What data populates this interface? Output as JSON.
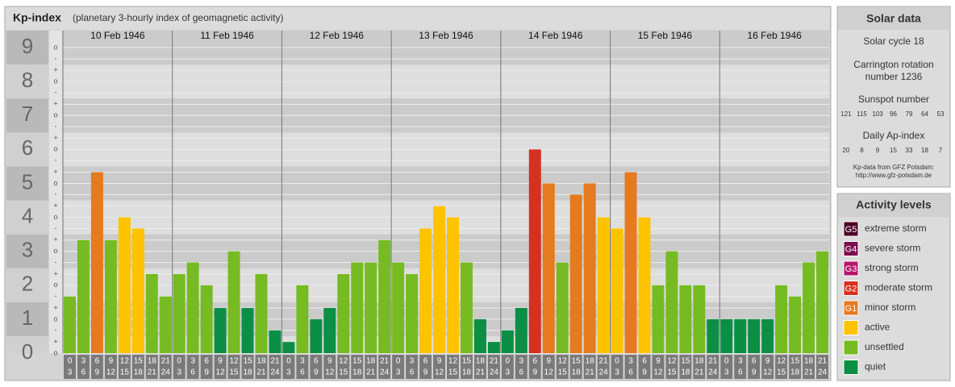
{
  "chart_data": {
    "type": "bar",
    "title": "Kp-index",
    "subtitle": "(planetary 3-hourly index of geomagnetic activity)",
    "days": [
      "10 Feb 1946",
      "11 Feb 1946",
      "12 Feb 1946",
      "13 Feb 1946",
      "14 Feb 1946",
      "15 Feb 1946",
      "16 Feb 1946"
    ],
    "categories": [
      [
        "0",
        "3"
      ],
      [
        "3",
        "6"
      ],
      [
        "6",
        "9"
      ],
      [
        "9",
        "12"
      ],
      [
        "12",
        "15"
      ],
      [
        "15",
        "18"
      ],
      [
        "18",
        "21"
      ],
      [
        "21",
        "24"
      ],
      [
        "0",
        "3"
      ],
      [
        "3",
        "6"
      ],
      [
        "6",
        "9"
      ],
      [
        "9",
        "12"
      ],
      [
        "12",
        "15"
      ],
      [
        "15",
        "18"
      ],
      [
        "18",
        "21"
      ],
      [
        "21",
        "24"
      ],
      [
        "0",
        "3"
      ],
      [
        "3",
        "6"
      ],
      [
        "6",
        "9"
      ],
      [
        "9",
        "12"
      ],
      [
        "12",
        "15"
      ],
      [
        "15",
        "18"
      ],
      [
        "18",
        "21"
      ],
      [
        "21",
        "24"
      ],
      [
        "0",
        "3"
      ],
      [
        "3",
        "6"
      ],
      [
        "6",
        "9"
      ],
      [
        "9",
        "12"
      ],
      [
        "12",
        "15"
      ],
      [
        "15",
        "18"
      ],
      [
        "18",
        "21"
      ],
      [
        "21",
        "24"
      ],
      [
        "0",
        "3"
      ],
      [
        "3",
        "6"
      ],
      [
        "6",
        "9"
      ],
      [
        "9",
        "12"
      ],
      [
        "12",
        "15"
      ],
      [
        "15",
        "18"
      ],
      [
        "18",
        "21"
      ],
      [
        "21",
        "24"
      ],
      [
        "0",
        "3"
      ],
      [
        "3",
        "6"
      ],
      [
        "6",
        "9"
      ],
      [
        "9",
        "12"
      ],
      [
        "12",
        "15"
      ],
      [
        "15",
        "18"
      ],
      [
        "18",
        "21"
      ],
      [
        "21",
        "24"
      ],
      [
        "0",
        "3"
      ],
      [
        "3",
        "6"
      ],
      [
        "6",
        "9"
      ],
      [
        "9",
        "12"
      ],
      [
        "12",
        "15"
      ],
      [
        "15",
        "18"
      ],
      [
        "18",
        "21"
      ],
      [
        "21",
        "24"
      ]
    ],
    "values": [
      1.67,
      3.33,
      5.33,
      3.33,
      4,
      3.67,
      2.33,
      1.67,
      2.33,
      2.67,
      2,
      1.33,
      3,
      1.33,
      2.33,
      0.67,
      0.33,
      2,
      1,
      1.33,
      2.33,
      2.67,
      2.67,
      3.33,
      2.67,
      2.33,
      3.67,
      4.33,
      4,
      2.67,
      1,
      0.33,
      0.67,
      1.33,
      6,
      5,
      2.67,
      4.67,
      5,
      4,
      3.67,
      5.33,
      4,
      2,
      3,
      2,
      2,
      1,
      1,
      1,
      1,
      1,
      2,
      1.67,
      2.67,
      3
    ],
    "colors": [
      "#76bb21",
      "#76bb21",
      "#e57a1e",
      "#76bb21",
      "#fdc300",
      "#fdc300",
      "#76bb21",
      "#76bb21",
      "#76bb21",
      "#76bb21",
      "#76bb21",
      "#0a8f45",
      "#76bb21",
      "#0a8f45",
      "#76bb21",
      "#0a8f45",
      "#0a8f45",
      "#76bb21",
      "#0a8f45",
      "#0a8f45",
      "#76bb21",
      "#76bb21",
      "#76bb21",
      "#76bb21",
      "#76bb21",
      "#76bb21",
      "#fdc300",
      "#fdc300",
      "#fdc300",
      "#76bb21",
      "#0a8f45",
      "#0a8f45",
      "#0a8f45",
      "#0a8f45",
      "#d63020",
      "#e57a1e",
      "#76bb21",
      "#e57a1e",
      "#e57a1e",
      "#fdc300",
      "#fdc300",
      "#e57a1e",
      "#fdc300",
      "#76bb21",
      "#76bb21",
      "#76bb21",
      "#76bb21",
      "#0a8f45",
      "#0a8f45",
      "#0a8f45",
      "#0a8f45",
      "#0a8f45",
      "#76bb21",
      "#76bb21",
      "#76bb21",
      "#76bb21"
    ],
    "ylim": [
      0,
      9.5
    ],
    "yticks": [
      0,
      1,
      2,
      3,
      4,
      5,
      6,
      7,
      8,
      9
    ],
    "minor_ticks": [
      {
        "value": 0,
        "label": "o"
      },
      {
        "value": 0.33,
        "label": "+"
      },
      {
        "value": 0.67,
        "label": "-"
      },
      {
        "value": 1,
        "label": "o"
      },
      {
        "value": 1.33,
        "label": "+"
      },
      {
        "value": 1.67,
        "label": "-"
      },
      {
        "value": 2,
        "label": "o"
      },
      {
        "value": 2.33,
        "label": "+"
      },
      {
        "value": 2.67,
        "label": "-"
      },
      {
        "value": 3,
        "label": "o"
      },
      {
        "value": 3.33,
        "label": "+"
      },
      {
        "value": 3.67,
        "label": "-"
      },
      {
        "value": 4,
        "label": "o"
      },
      {
        "value": 4.33,
        "label": "+"
      },
      {
        "value": 4.67,
        "label": "-"
      },
      {
        "value": 5,
        "label": "o"
      },
      {
        "value": 5.33,
        "label": "+"
      },
      {
        "value": 5.67,
        "label": "-"
      },
      {
        "value": 6,
        "label": "o"
      },
      {
        "value": 6.33,
        "label": "+"
      },
      {
        "value": 6.67,
        "label": "-"
      },
      {
        "value": 7,
        "label": "o"
      },
      {
        "value": 7.33,
        "label": "+"
      },
      {
        "value": 7.67,
        "label": "-"
      },
      {
        "value": 8,
        "label": "o"
      },
      {
        "value": 8.33,
        "label": "+"
      },
      {
        "value": 8.67,
        "label": "-"
      },
      {
        "value": 9,
        "label": "o"
      }
    ]
  },
  "solar": {
    "title": "Solar data",
    "cycle": "Solar cycle 18",
    "carrington": [
      "Carrington rotation",
      "number 1236"
    ],
    "sunspot_label": "Sunspot number",
    "sunspot": [
      121,
      115,
      103,
      96,
      79,
      64,
      53
    ],
    "ap_label": "Daily Ap-index",
    "ap": [
      20,
      8,
      9,
      15,
      33,
      18,
      7
    ],
    "source": [
      "Kp-data from GFZ Potsdam:",
      "http://www.gfz-potsdam.de"
    ]
  },
  "levels": {
    "title": "Activity levels",
    "items": [
      {
        "badge": "G5",
        "label": "extreme storm",
        "color": "#4d0026"
      },
      {
        "badge": "G4",
        "label": "severe storm",
        "color": "#7a0f4d"
      },
      {
        "badge": "G3",
        "label": "strong storm",
        "color": "#b5176b"
      },
      {
        "badge": "G2",
        "label": "moderate storm",
        "color": "#d63020"
      },
      {
        "badge": "G1",
        "label": "minor storm",
        "color": "#e57a1e"
      },
      {
        "label": "active",
        "color": "#fdc300"
      },
      {
        "label": "unsettled",
        "color": "#76bb21"
      },
      {
        "label": "quiet",
        "color": "#0a8f45"
      }
    ]
  }
}
